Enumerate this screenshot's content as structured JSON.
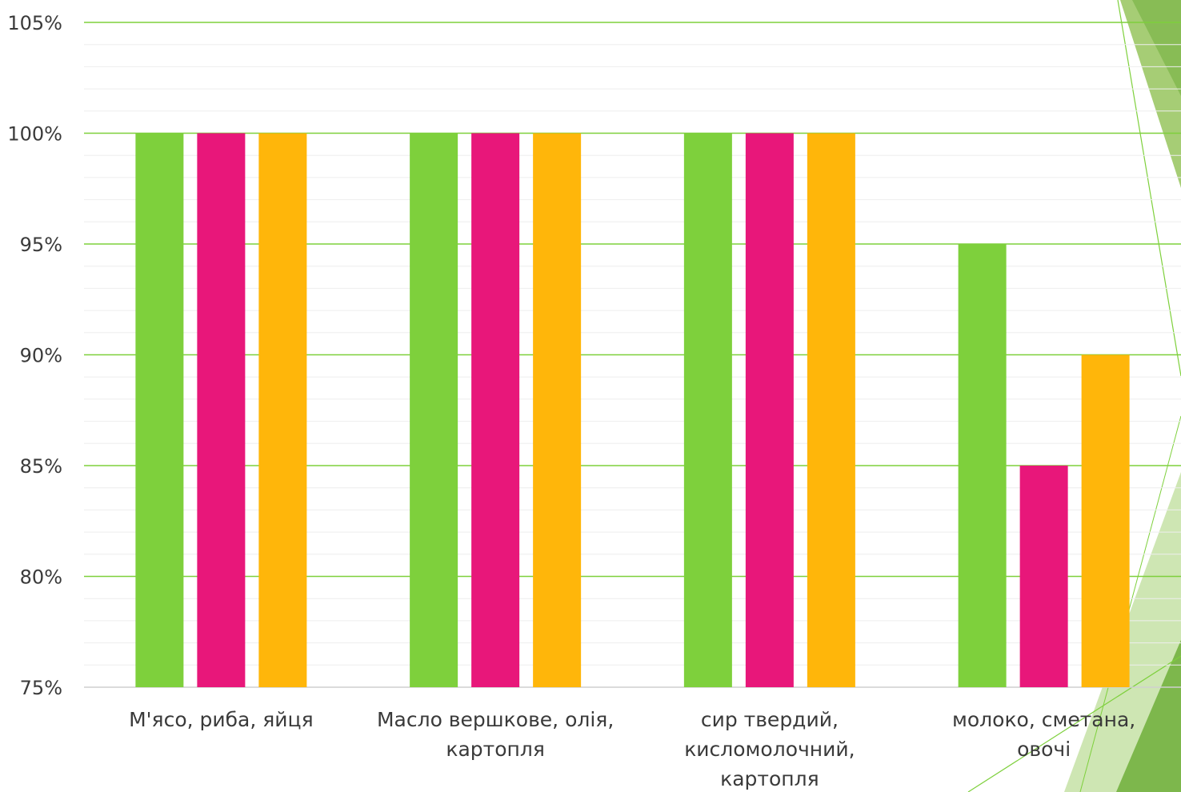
{
  "colors": {
    "major_grid": "#7ed03c",
    "minor_grid": "#eeeeee",
    "axis": "#cfcfcf",
    "deco_light": "#c6e2a6",
    "deco_mid": "#9cc866",
    "deco_dark": "#6fae3a"
  },
  "chart_data": {
    "type": "bar",
    "title": "",
    "xlabel": "",
    "ylabel": "",
    "ylim": [
      75,
      105
    ],
    "yticks": [
      "75%",
      "80%",
      "85%",
      "90%",
      "95%",
      "100%",
      "105%"
    ],
    "grid": true,
    "legend": "none",
    "categories": [
      [
        "М'ясо, риба, яйця"
      ],
      [
        "Масло вершкове, олія,",
        "картопля"
      ],
      [
        "сир твердий,",
        "кисломолочний,",
        "картопля"
      ],
      [
        "молоко, сметана,",
        "овочі"
      ]
    ],
    "series": [
      {
        "color": "#7ed03c",
        "values": [
          100,
          100,
          100,
          95
        ]
      },
      {
        "color": "#e8177a",
        "values": [
          100,
          100,
          100,
          85
        ]
      },
      {
        "color": "#ffb60a",
        "values": [
          100,
          100,
          100,
          90
        ]
      }
    ]
  }
}
